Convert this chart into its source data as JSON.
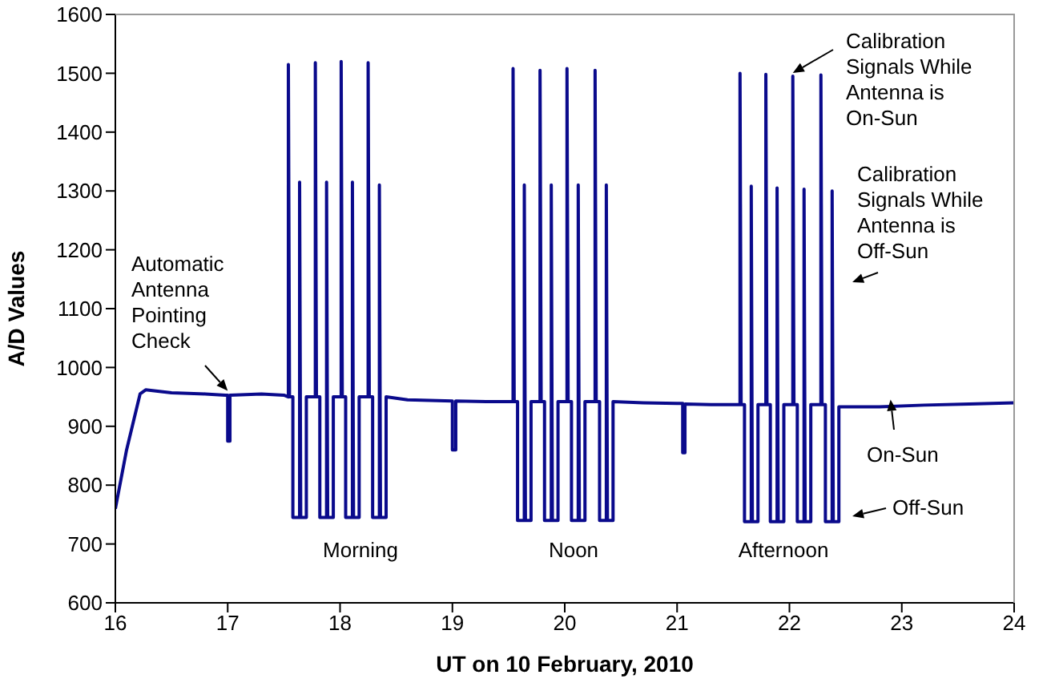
{
  "chart_data": {
    "type": "line",
    "xlabel": "UT on 10 February, 2010",
    "ylabel": "A/D Values",
    "xlim": [
      16,
      24
    ],
    "xticks": [
      16,
      17,
      18,
      19,
      20,
      21,
      22,
      23,
      24
    ],
    "ylim": [
      600,
      1600
    ],
    "yticks": [
      600,
      700,
      800,
      900,
      1000,
      1100,
      1200,
      1300,
      1400,
      1500,
      1600
    ],
    "marker": "none",
    "series": [
      {
        "color": "#0a0a8c",
        "x": [
          16.0,
          16.1,
          16.22,
          16.27,
          16.5,
          16.8,
          16.98,
          17.0,
          17.0,
          17.02,
          17.02,
          17.3,
          17.5,
          17.54,
          17.54,
          17.55,
          17.58,
          17.58,
          17.64,
          17.64,
          17.65,
          17.7,
          17.7,
          17.78,
          17.78,
          17.79,
          17.82,
          17.82,
          17.88,
          17.88,
          17.89,
          17.94,
          17.94,
          18.01,
          18.01,
          18.02,
          18.05,
          18.05,
          18.11,
          18.11,
          18.12,
          18.17,
          18.17,
          18.25,
          18.25,
          18.26,
          18.29,
          18.29,
          18.35,
          18.35,
          18.36,
          18.41,
          18.41,
          18.6,
          19.0,
          19.0,
          19.03,
          19.03,
          19.3,
          19.5,
          19.54,
          19.54,
          19.55,
          19.58,
          19.58,
          19.64,
          19.64,
          19.65,
          19.7,
          19.7,
          19.78,
          19.78,
          19.79,
          19.82,
          19.82,
          19.88,
          19.88,
          19.89,
          19.94,
          19.94,
          20.02,
          20.02,
          20.03,
          20.06,
          20.06,
          20.12,
          20.12,
          20.13,
          20.18,
          20.18,
          20.27,
          20.27,
          20.28,
          20.31,
          20.31,
          20.37,
          20.37,
          20.38,
          20.43,
          20.43,
          20.7,
          21.0,
          21.05,
          21.05,
          21.07,
          21.07,
          21.3,
          21.52,
          21.56,
          21.56,
          21.57,
          21.6,
          21.6,
          21.66,
          21.66,
          21.67,
          21.72,
          21.72,
          21.79,
          21.79,
          21.8,
          21.83,
          21.83,
          21.89,
          21.89,
          21.9,
          21.95,
          21.95,
          22.03,
          22.03,
          22.04,
          22.07,
          22.07,
          22.13,
          22.13,
          22.14,
          22.19,
          22.19,
          22.28,
          22.28,
          22.29,
          22.32,
          22.32,
          22.38,
          22.38,
          22.39,
          22.44,
          22.44,
          22.8,
          23.2,
          23.6,
          24.0
        ],
        "values": [
          760,
          860,
          955,
          962,
          957,
          955,
          953,
          953,
          875,
          875,
          953,
          955,
          953,
          950,
          1515,
          950,
          950,
          745,
          745,
          1315,
          745,
          745,
          950,
          950,
          1518,
          950,
          950,
          745,
          745,
          1315,
          745,
          745,
          950,
          950,
          1520,
          950,
          950,
          745,
          745,
          1315,
          745,
          745,
          950,
          950,
          1518,
          950,
          950,
          745,
          745,
          1310,
          745,
          745,
          950,
          945,
          943,
          860,
          860,
          943,
          942,
          942,
          942,
          1508,
          942,
          942,
          740,
          740,
          1310,
          740,
          740,
          942,
          942,
          1505,
          942,
          942,
          740,
          740,
          1310,
          740,
          740,
          942,
          942,
          1508,
          942,
          942,
          740,
          740,
          1310,
          740,
          740,
          942,
          942,
          1505,
          942,
          942,
          740,
          740,
          1310,
          740,
          740,
          942,
          940,
          939,
          939,
          855,
          855,
          938,
          937,
          937,
          937,
          1500,
          937,
          937,
          738,
          738,
          1308,
          738,
          738,
          937,
          937,
          1498,
          937,
          937,
          738,
          738,
          1305,
          738,
          738,
          937,
          937,
          1495,
          937,
          937,
          738,
          738,
          1303,
          738,
          738,
          937,
          937,
          1497,
          937,
          937,
          738,
          738,
          1300,
          738,
          738,
          933,
          933,
          936,
          938,
          940
        ]
      }
    ],
    "annotations": [
      {
        "text": "Automatic Antenna Pointing Check",
        "x": 17.0,
        "y": 955
      },
      {
        "text": "Calibration Signals While Antenna is On-Sun",
        "x": 22.03,
        "y": 1495
      },
      "Calibration Signals While Antenna is Off-Sun",
      {
        "text": "On-Sun",
        "x": 22.9,
        "y": 940
      },
      "Off-Sun",
      "Morning",
      "Noon",
      "Afternoon"
    ]
  }
}
